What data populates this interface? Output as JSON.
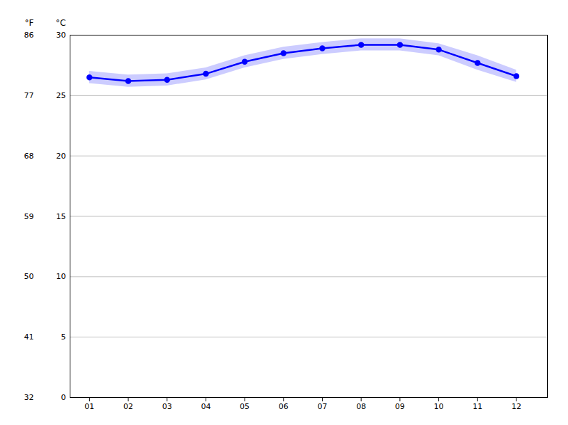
{
  "chart_data": {
    "type": "line",
    "x": [
      1,
      2,
      3,
      4,
      5,
      6,
      7,
      8,
      9,
      10,
      11,
      12
    ],
    "xlim": [
      0.5,
      12.8
    ],
    "xticks": [
      {
        "value": 1,
        "label": "01"
      },
      {
        "value": 2,
        "label": "02"
      },
      {
        "value": 3,
        "label": "03"
      },
      {
        "value": 4,
        "label": "04"
      },
      {
        "value": 5,
        "label": "05"
      },
      {
        "value": 6,
        "label": "06"
      },
      {
        "value": 7,
        "label": "07"
      },
      {
        "value": 8,
        "label": "08"
      },
      {
        "value": 9,
        "label": "09"
      },
      {
        "value": 10,
        "label": "10"
      },
      {
        "value": 11,
        "label": "11"
      },
      {
        "value": 12,
        "label": "12"
      }
    ],
    "values": [
      26.5,
      26.2,
      26.3,
      26.8,
      27.8,
      28.5,
      28.9,
      29.2,
      29.2,
      28.8,
      27.7,
      26.6
    ],
    "color": "#0000ff",
    "marker": "circle",
    "band": {
      "lower": [
        26.0,
        25.7,
        25.8,
        26.3,
        27.3,
        28.0,
        28.4,
        28.7,
        28.7,
        28.3,
        27.1,
        26.1
      ],
      "upper": [
        27.0,
        26.7,
        26.8,
        27.3,
        28.3,
        29.0,
        29.4,
        29.7,
        29.7,
        29.3,
        28.3,
        27.1
      ],
      "color": "#aaaaff"
    },
    "ylabel": "°C",
    "ylim": [
      0,
      30
    ],
    "yticks": [
      0,
      5,
      10,
      15,
      20,
      25,
      30
    ],
    "y2label": "°F",
    "y2lim": [
      32,
      86
    ],
    "y2ticks": [
      32,
      41,
      50,
      59,
      68,
      77,
      86
    ],
    "grid": true
  }
}
